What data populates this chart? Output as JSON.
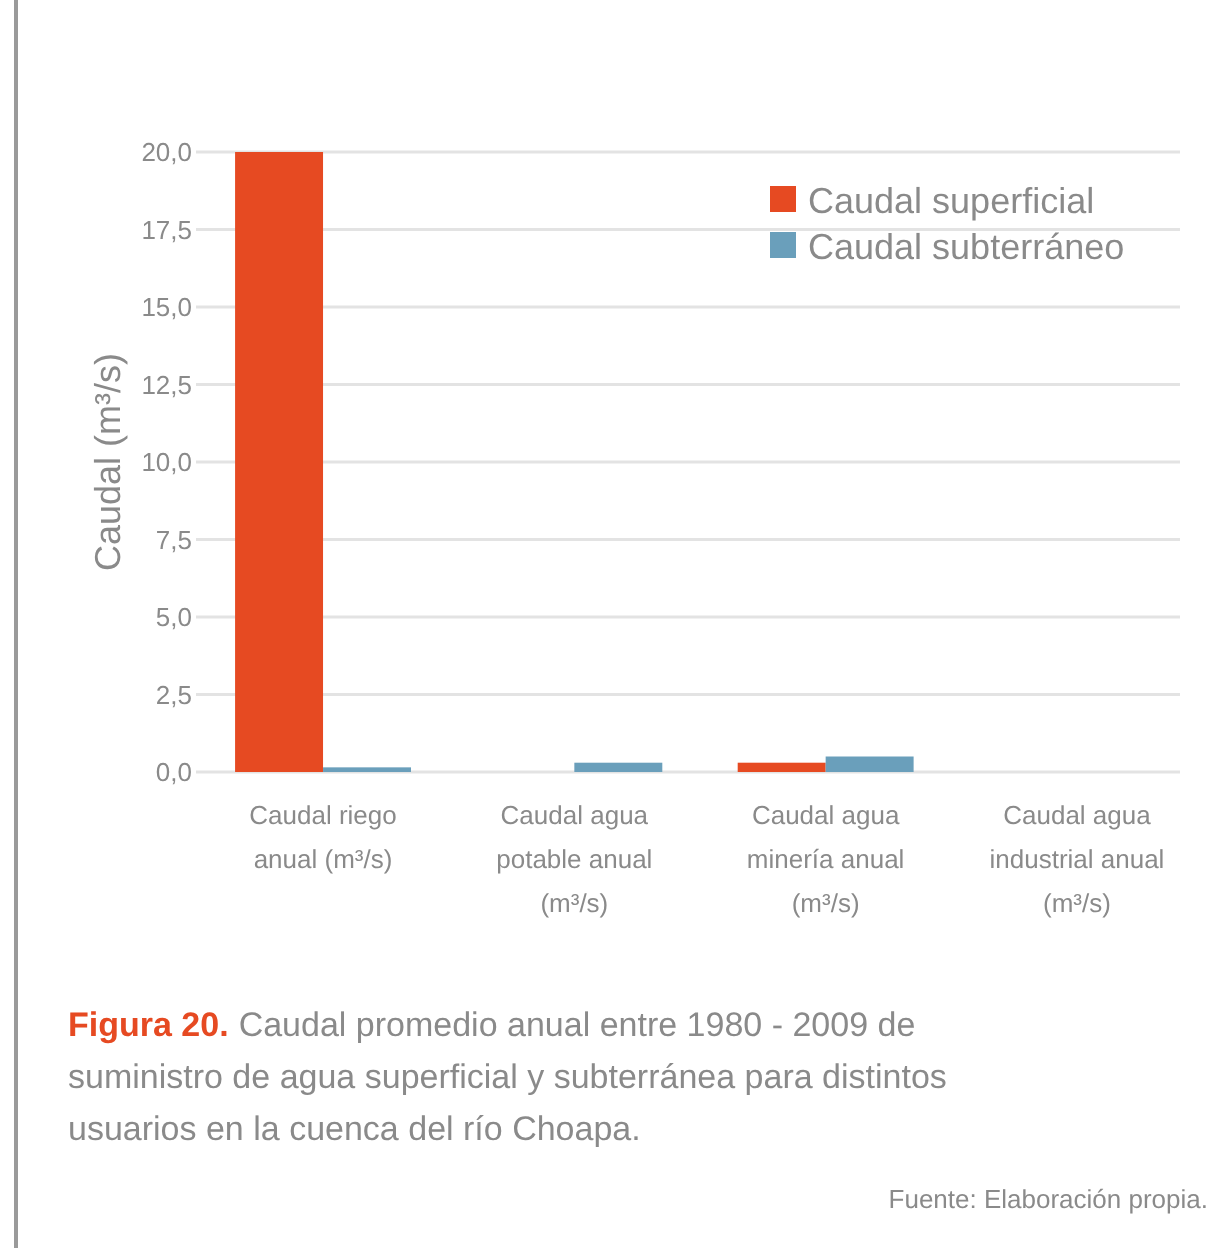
{
  "chart_data": {
    "type": "bar",
    "title": "Figura 20.",
    "subtitle": "Caudal promedio anual entre 1980 - 2009 de suministro de agua superficial y subterránea para distintos usuarios en la cuenca del río Choapa.",
    "ylabel": "Caudal (m³/s)",
    "categories": [
      "Caudal riego anual (m³/s)",
      "Caudal agua potable anual (m³/s)",
      "Caudal agua minería anual (m³/s)",
      "Caudal agua industrial anual (m³/s)"
    ],
    "series": [
      {
        "name": "Caudal superficial",
        "color": "#e64a22",
        "values": [
          20,
          0,
          0.3,
          0
        ]
      },
      {
        "name": "Caudal subterráneo",
        "color": "#6a9fbb",
        "values": [
          0.15,
          0.3,
          0.5,
          0
        ]
      }
    ],
    "ylim": [
      0,
      20
    ],
    "yticks": [
      {
        "value": 0,
        "label": "0,0"
      },
      {
        "value": 2.5,
        "label": "2,5"
      },
      {
        "value": 5,
        "label": "5,0"
      },
      {
        "value": 7.5,
        "label": "7,5"
      },
      {
        "value": 10,
        "label": "10,0"
      },
      {
        "value": 12.5,
        "label": "12,5"
      },
      {
        "value": 15,
        "label": "15,0"
      },
      {
        "value": 17.5,
        "label": "17,5"
      },
      {
        "value": 20,
        "label": "20,0"
      }
    ],
    "grid": "y",
    "legend": "top right",
    "annotations": [
      "Fuente: Elaboración propia."
    ]
  }
}
